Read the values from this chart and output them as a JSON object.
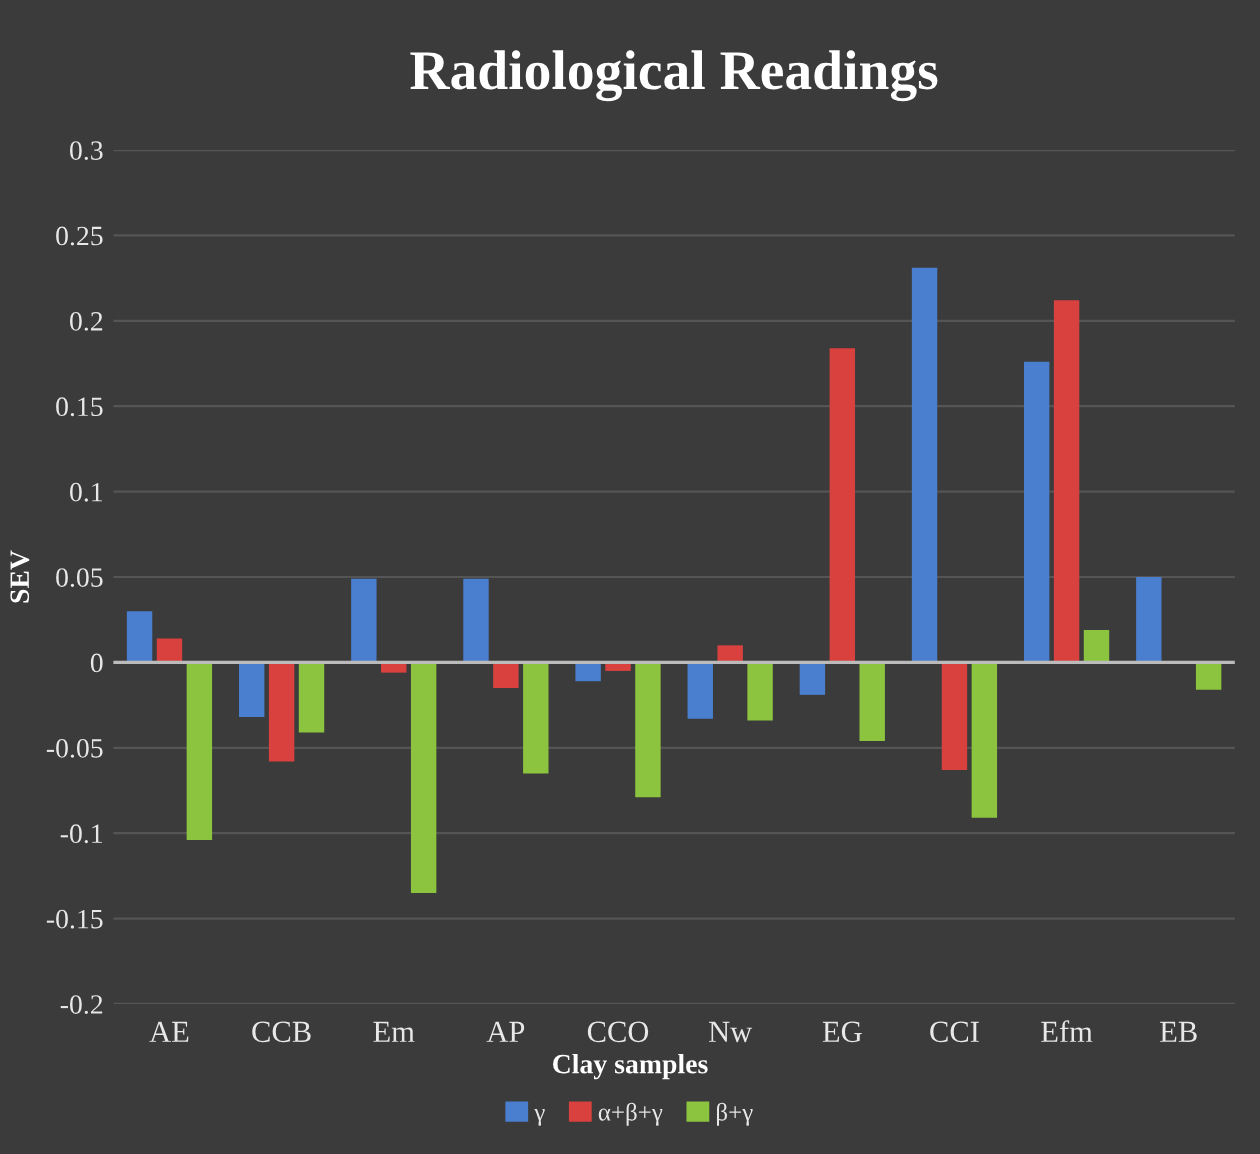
{
  "chart_data": {
    "type": "bar",
    "title": "Radiological Readings",
    "xlabel": "Clay samples",
    "ylabel": "SEV",
    "categories": [
      "AE",
      "CCB",
      "Em",
      "AP",
      "CCO",
      "Nw",
      "EG",
      "CCI",
      "Efm",
      "EB"
    ],
    "series": [
      {
        "name": "γ",
        "color": "#4a7fd0",
        "values": [
          0.03,
          -0.032,
          0.049,
          0.049,
          -0.011,
          -0.033,
          -0.019,
          0.231,
          0.176,
          0.05
        ]
      },
      {
        "name": "α+β+γ",
        "color": "#d9413f",
        "values": [
          0.014,
          -0.058,
          -0.006,
          -0.015,
          -0.005,
          0.01,
          0.184,
          -0.063,
          0.212,
          0
        ]
      },
      {
        "name": "β+γ",
        "color": "#8cc43f",
        "values": [
          -0.104,
          -0.041,
          -0.135,
          -0.065,
          -0.079,
          -0.034,
          -0.046,
          -0.091,
          0.019,
          -0.016
        ]
      }
    ],
    "ylim": [
      -0.2,
      0.3
    ],
    "yticks": [
      {
        "value": -0.2,
        "label": "-0.2"
      },
      {
        "value": -0.15,
        "label": "-0.15"
      },
      {
        "value": -0.1,
        "label": "-0.1"
      },
      {
        "value": -0.05,
        "label": "-0.05"
      },
      0,
      0.05,
      0.1,
      0.15,
      0.2,
      0.25,
      0.3
    ],
    "grid": "y",
    "legend": "bottom"
  }
}
